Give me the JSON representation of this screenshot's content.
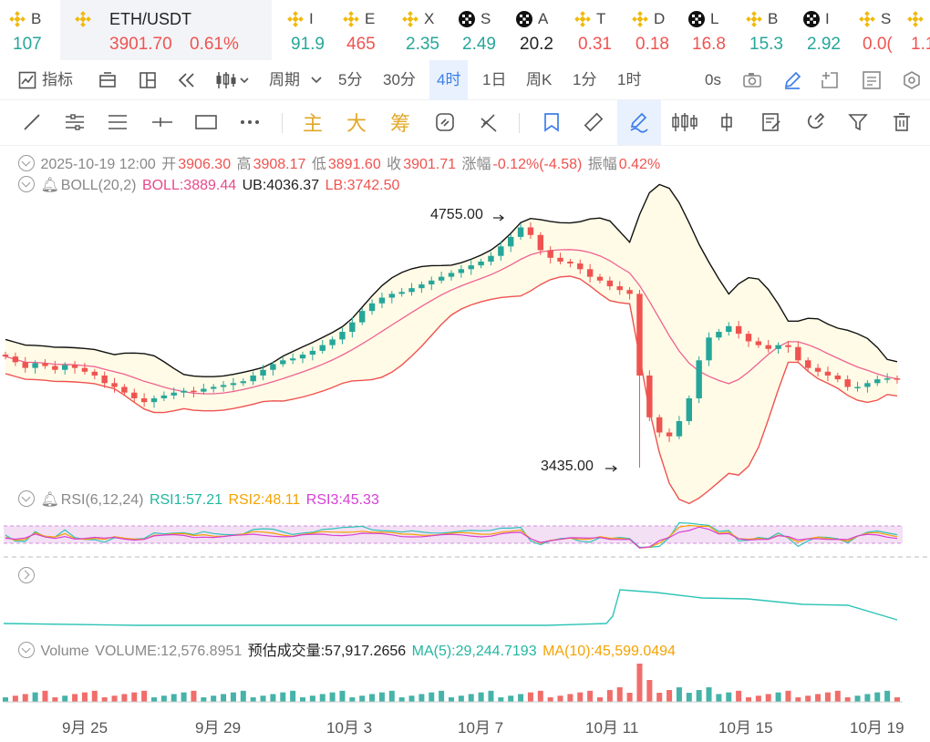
{
  "ticker": [
    {
      "sym": "B",
      "price": "107",
      "dir": "up",
      "icon": "bnb-icon"
    },
    {
      "sym": "ETH/USDT",
      "price": "3901.70",
      "pct": "0.61%",
      "dir": "dn",
      "icon": "bnb-icon",
      "active": true
    },
    {
      "sym": "I",
      "price": "91.9",
      "dir": "up",
      "icon": "bnb-icon"
    },
    {
      "sym": "E",
      "price": "465",
      "dir": "dn",
      "icon": "bnb-icon"
    },
    {
      "sym": "X",
      "price": "2.35",
      "dir": "up",
      "icon": "bnb-icon"
    },
    {
      "sym": "S",
      "price": "2.49",
      "dir": "up",
      "icon": "okx-icon"
    },
    {
      "sym": "A",
      "price": "20.2",
      "dir": "nt",
      "icon": "okx-icon"
    },
    {
      "sym": "T",
      "price": "0.31",
      "dir": "dn",
      "icon": "bnb-icon"
    },
    {
      "sym": "D",
      "price": "0.18",
      "dir": "dn",
      "icon": "bnb-icon"
    },
    {
      "sym": "L",
      "price": "16.8",
      "dir": "dn",
      "icon": "okx-icon"
    },
    {
      "sym": "B",
      "price": "15.3",
      "dir": "up",
      "icon": "bnb-icon"
    },
    {
      "sym": "I",
      "price": "2.92",
      "dir": "up",
      "icon": "okx-icon"
    },
    {
      "sym": "S",
      "price": "0.0(",
      "dir": "dn",
      "icon": "bnb-icon"
    },
    {
      "sym": "E",
      "price": "1.1",
      "dir": "dn",
      "icon": "bnb-icon"
    }
  ],
  "toolbar": {
    "indicators": "指标",
    "period": "周期",
    "intervals": [
      "5分",
      "30分",
      "4时",
      "1日",
      "周K",
      "1分",
      "1时"
    ],
    "selected_interval": "4时",
    "countdown": "0s"
  },
  "drawing_tools": {
    "main": "主",
    "big": "大",
    "chip": "筹"
  },
  "ohlc": {
    "date": "2025-10-19 12:00",
    "open_label": "开",
    "open": "3906.30",
    "high_label": "高",
    "high": "3908.17",
    "low_label": "低",
    "low": "3891.60",
    "close_label": "收",
    "close": "3901.71",
    "change_label": "涨幅",
    "change": "-0.12%(-4.58)",
    "amp_label": "振幅",
    "amp": "0.42%"
  },
  "boll": {
    "name": "BOLL(20,2)",
    "mid": "BOLL:3889.44",
    "ub": "UB:4036.37",
    "lb": "LB:3742.50"
  },
  "high_marker": "4755.00",
  "low_marker": "3435.00",
  "rsi": {
    "name": "RSI(6,12,24)",
    "rsi1": "RSI1:57.21",
    "rsi2": "RSI2:48.11",
    "rsi3": "RSI3:45.33"
  },
  "volume": {
    "name": "Volume",
    "vol": "VOLUME:12,576.8951",
    "est": "预估成交量:57,917.2656",
    "ma5": "MA(5):29,244.7193",
    "ma10": "MA(10):45,599.0494"
  },
  "x_labels": [
    "9月 25",
    "9月 29",
    "10月 3",
    "10月 7",
    "10月 11",
    "10月 15",
    "10月 19"
  ],
  "colors": {
    "up": "#26a69a",
    "down": "#ef5350",
    "band_fill": "#fffbe6",
    "mid_line": "#f06292",
    "rsi1": "#2ec4b6",
    "rsi2": "#f5a300",
    "rsi3": "#d63fd6",
    "accent": "#3d7ee8"
  },
  "chart_data": {
    "type": "candlestick",
    "y_range": [
      3435,
      4755
    ],
    "close_series": [
      4020,
      3990,
      3960,
      3985,
      3970,
      3950,
      3975,
      3960,
      3940,
      3920,
      3880,
      3860,
      3830,
      3800,
      3780,
      3800,
      3815,
      3830,
      3840,
      3835,
      3850,
      3860,
      3870,
      3880,
      3890,
      3920,
      3950,
      3980,
      4000,
      4010,
      4030,
      4050,
      4080,
      4110,
      4150,
      4200,
      4260,
      4300,
      4330,
      4350,
      4360,
      4380,
      4400,
      4420,
      4440,
      4460,
      4480,
      4500,
      4520,
      4550,
      4600,
      4650,
      4700,
      4660,
      4580,
      4540,
      4520,
      4510,
      4480,
      4440,
      4420,
      4390,
      4370,
      4350,
      3920,
      3700,
      3620,
      3600,
      3680,
      3800,
      4000,
      4120,
      4150,
      4180,
      4140,
      4100,
      4080,
      4060,
      4080,
      4070,
      4000,
      3960,
      3940,
      3920,
      3900,
      3860,
      3860,
      3880,
      3900,
      3905,
      3902
    ]
  }
}
